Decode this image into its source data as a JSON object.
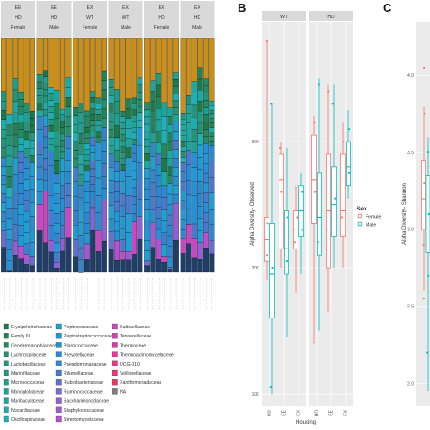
{
  "panel_letters": {
    "b": "B",
    "c": "C"
  },
  "chart_data": [
    {
      "type": "bar",
      "stacked": true,
      "facets": [
        {
          "line1": "EE",
          "line2": "HD",
          "line3": "Female"
        },
        {
          "line1": "EE",
          "line2": "HD",
          "line3": "Male"
        },
        {
          "line1": "EX",
          "line2": "WT",
          "line3": "Female"
        },
        {
          "line1": "EX",
          "line2": "WT",
          "line3": "Male"
        },
        {
          "line1": "EX",
          "line2": "HD",
          "line3": "Female"
        },
        {
          "line1": "EX",
          "line2": "HD",
          "line3": "Male"
        }
      ],
      "legend": [
        {
          "name": "Erysipelotrichaceae",
          "color": "#1a7a4a"
        },
        {
          "name": "Family III",
          "color": "#20845a"
        },
        {
          "name": "Geodermatophilaceae",
          "color": "#238a62"
        },
        {
          "name": "Lachnospiraceae",
          "color": "#24906e"
        },
        {
          "name": "Lactobacillaceae",
          "color": "#22967a"
        },
        {
          "name": "Marinifilaceae",
          "color": "#1f9c86"
        },
        {
          "name": "Micrococcaceae",
          "color": "#1ca292"
        },
        {
          "name": "Monoglobaceae",
          "color": "#1aa69c"
        },
        {
          "name": "Muribaculaceae",
          "color": "#19aaa6"
        },
        {
          "name": "Nocardiaceae",
          "color": "#1aaeb0"
        },
        {
          "name": "Oscillospiraceae",
          "color": "#1cb0b8"
        },
        {
          "name": "Peptococcaceae",
          "color": "#1e9fd6"
        },
        {
          "name": "Peptostreptococcaceae",
          "color": "#2198d8"
        },
        {
          "name": "Planococcaceae",
          "color": "#2491d6"
        },
        {
          "name": "Prevotellaceae",
          "color": "#2a89d2"
        },
        {
          "name": "Pseudomonadaceae",
          "color": "#3384d0"
        },
        {
          "name": "Rikenellaceae",
          "color": "#4a7ad0"
        },
        {
          "name": "Rubrobacteriaceae",
          "color": "#6270d2"
        },
        {
          "name": "Ruminococcaceae",
          "color": "#7a68d4"
        },
        {
          "name": "Saccharimonadaceae",
          "color": "#9060d4"
        },
        {
          "name": "Staphylococcaceae",
          "color": "#a458d2"
        },
        {
          "name": "Streptomycetaceae",
          "color": "#b650cc"
        },
        {
          "name": "Sutterellaceae",
          "color": "#c848c4"
        },
        {
          "name": "Tannerellaceae",
          "color": "#d440b8"
        },
        {
          "name": "Thermaceae",
          "color": "#de3aaa"
        },
        {
          "name": "Thermoactinomycetaceae",
          "color": "#e6369a"
        },
        {
          "name": "UCG-010",
          "color": "#ec3488"
        },
        {
          "name": "Veillonellaceae",
          "color": "#f03476"
        },
        {
          "name": "Xanthomonadaceae",
          "color": "#f23664"
        },
        {
          "name": "NA",
          "color": "#7f7f7f"
        }
      ]
    },
    {
      "type": "boxplot",
      "facets": [
        "WT",
        "HD"
      ],
      "categories": [
        "HD",
        "EE",
        "EX"
      ],
      "xlabel": "Housing",
      "ylabel": "Alpha Diversity- Observed",
      "yticks": [
        100,
        200,
        300
      ],
      "ylim": [
        90,
        395
      ],
      "legend_title": "Sex",
      "series": [
        {
          "name": "Female",
          "color": "#f8766d",
          "boxes": [
            {
              "facet": "WT",
              "cat": "HD",
              "min": 190,
              "q1": 205,
              "median": 222,
              "q3": 240,
              "max": 380
            },
            {
              "facet": "WT",
              "cat": "EE",
              "min": 200,
              "q1": 215,
              "median": 270,
              "q3": 290,
              "max": 300
            },
            {
              "facet": "WT",
              "cat": "EX",
              "min": 180,
              "q1": 215,
              "median": 230,
              "q3": 245,
              "max": 265
            },
            {
              "facet": "HD",
              "cat": "HD",
              "min": 140,
              "q1": 235,
              "median": 270,
              "q3": 305,
              "max": 320
            },
            {
              "facet": "HD",
              "cat": "EE",
              "min": 165,
              "q1": 200,
              "median": 245,
              "q3": 290,
              "max": 345
            },
            {
              "facet": "HD",
              "cat": "EX",
              "min": 200,
              "q1": 225,
              "median": 245,
              "q3": 290,
              "max": 315
            }
          ],
          "points": [
            {
              "facet": "WT",
              "cat": "HD",
              "y": 380
            },
            {
              "facet": "WT",
              "cat": "HD",
              "y": 235
            },
            {
              "facet": "WT",
              "cat": "HD",
              "y": 210
            },
            {
              "facet": "WT",
              "cat": "EE",
              "y": 295
            },
            {
              "facet": "WT",
              "cat": "EE",
              "y": 260
            },
            {
              "facet": "WT",
              "cat": "EX",
              "y": 240
            },
            {
              "facet": "WT",
              "cat": "EX",
              "y": 220
            },
            {
              "facet": "HD",
              "cat": "HD",
              "y": 315
            },
            {
              "facet": "HD",
              "cat": "HD",
              "y": 260
            },
            {
              "facet": "HD",
              "cat": "EE",
              "y": 340
            },
            {
              "facet": "HD",
              "cat": "EE",
              "y": 230
            },
            {
              "facet": "HD",
              "cat": "EX",
              "y": 300
            },
            {
              "facet": "HD",
              "cat": "EX",
              "y": 240
            }
          ]
        },
        {
          "name": "Male",
          "color": "#00bfc4",
          "boxes": [
            {
              "facet": "WT",
              "cat": "HD",
              "min": 100,
              "q1": 160,
              "median": 195,
              "q3": 235,
              "max": 330
            },
            {
              "facet": "WT",
              "cat": "EE",
              "min": 145,
              "q1": 195,
              "median": 215,
              "q3": 245,
              "max": 295
            },
            {
              "facet": "WT",
              "cat": "EX",
              "min": 195,
              "q1": 225,
              "median": 245,
              "q3": 265,
              "max": 275
            },
            {
              "facet": "HD",
              "cat": "HD",
              "min": 150,
              "q1": 210,
              "median": 240,
              "q3": 275,
              "max": 350
            },
            {
              "facet": "HD",
              "cat": "EE",
              "min": 200,
              "q1": 225,
              "median": 250,
              "q3": 280,
              "max": 345
            },
            {
              "facet": "HD",
              "cat": "EX",
              "min": 255,
              "q1": 265,
              "median": 280,
              "q3": 300,
              "max": 325
            }
          ],
          "points": [
            {
              "facet": "WT",
              "cat": "HD",
              "y": 330
            },
            {
              "facet": "WT",
              "cat": "HD",
              "y": 200
            },
            {
              "facet": "WT",
              "cat": "HD",
              "y": 105
            },
            {
              "facet": "WT",
              "cat": "EE",
              "y": 240
            },
            {
              "facet": "WT",
              "cat": "EE",
              "y": 205
            },
            {
              "facet": "WT",
              "cat": "EX",
              "y": 260
            },
            {
              "facet": "WT",
              "cat": "EX",
              "y": 230
            },
            {
              "facet": "HD",
              "cat": "HD",
              "y": 345
            },
            {
              "facet": "HD",
              "cat": "HD",
              "y": 220
            },
            {
              "facet": "HD",
              "cat": "EE",
              "y": 330
            },
            {
              "facet": "HD",
              "cat": "EE",
              "y": 255
            },
            {
              "facet": "HD",
              "cat": "EX",
              "y": 310
            },
            {
              "facet": "HD",
              "cat": "EX",
              "y": 275
            }
          ]
        }
      ]
    },
    {
      "type": "boxplot",
      "ylabel": "Alpha Diversity- Shannon",
      "yticks": [
        2.0,
        2.5,
        3.0,
        3.5,
        4.0
      ],
      "ylim": [
        1.85,
        4.35
      ]
    }
  ]
}
